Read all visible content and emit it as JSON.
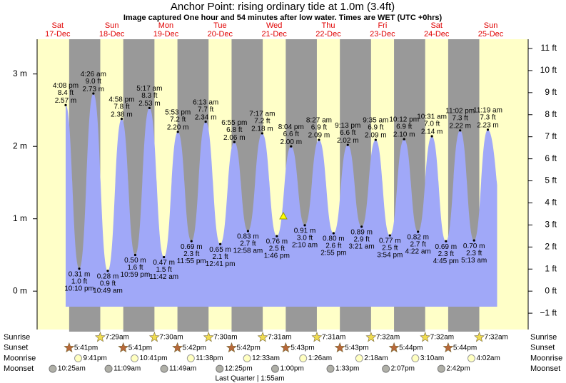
{
  "chart_data": {
    "type": "tide",
    "title": "Anchor Point: rising  ordinary tide at 1.0m (3.4ft)",
    "subtitle": "Image captured One hour and 54 minutes after low water. Times are WET (UTC +0hrs)",
    "days": [
      {
        "name": "Sat",
        "date": "17-Dec"
      },
      {
        "name": "Sun",
        "date": "18-Dec"
      },
      {
        "name": "Mon",
        "date": "19-Dec"
      },
      {
        "name": "Tue",
        "date": "20-Dec"
      },
      {
        "name": "Wed",
        "date": "21-Dec"
      },
      {
        "name": "Thu",
        "date": "22-Dec"
      },
      {
        "name": "Fri",
        "date": "23-Dec"
      },
      {
        "name": "Sat",
        "date": "24-Dec"
      },
      {
        "name": "Sun",
        "date": "25-Dec"
      }
    ],
    "times": [
      "4:08 pm",
      "10:10 pm",
      "4:26 am",
      "10:49 am",
      "4:58 pm",
      "10:59 pm",
      "5:17 am",
      "11:42 am",
      "5:53 pm",
      "11:55 pm",
      "6:13 am",
      "12:41 pm",
      "6:55 pm",
      "12:58 am",
      "7:17 am",
      "1:46 pm",
      "8:04 pm",
      "2:10 am",
      "8:27 am",
      "2:55 pm",
      "9:13 pm",
      "3:21 am",
      "9:35 am",
      "3:54 pm",
      "10:12 pm",
      "4:22 am",
      "10:31 am",
      "4:45 pm",
      "11:02 pm",
      "5:13 am",
      "11:19 am"
    ],
    "values": [
      2.57,
      0.31,
      2.73,
      0.28,
      2.38,
      0.5,
      2.53,
      0.47,
      2.2,
      0.69,
      2.34,
      0.65,
      2.06,
      0.83,
      2.18,
      0.76,
      2.0,
      0.91,
      2.09,
      0.8,
      2.02,
      0.89,
      2.09,
      0.77,
      2.1,
      0.82,
      2.14,
      0.69,
      2.22,
      0.7,
      2.23
    ],
    "value_labels": [
      "2.57 m",
      "0.31 m",
      "2.73 m",
      "0.28 m",
      "2.38 m",
      "0.50 m",
      "2.53 m",
      "0.47 m",
      "2.20 m",
      "0.69 m",
      "2.34 m",
      "0.65 m",
      "2.06 m",
      "0.83 m",
      "2.18 m",
      "0.76 m",
      "2.00 m",
      "0.91 m",
      "2.09 m",
      "0.80 m",
      "2.02 m",
      "0.89 m",
      "2.09 m",
      "0.77 m",
      "2.10 m",
      "0.82 m",
      "2.14 m",
      "0.69 m",
      "2.22 m",
      "0.70 m",
      "2.23 m"
    ],
    "ft_labels": [
      "8.4 ft",
      "1.0 ft",
      "9.0 ft",
      "0.9 ft",
      "7.8 ft",
      "1.6 ft",
      "8.3 ft",
      "1.5 ft",
      "7.2 ft",
      "2.3 ft",
      "7.7 ft",
      "2.1 ft",
      "6.8 ft",
      "2.7 ft",
      "7.2 ft",
      "2.5 ft",
      "6.6 ft",
      "3.0 ft",
      "6.9 ft",
      "2.6 ft",
      "6.6 ft",
      "2.9 ft",
      "6.9 ft",
      "2.5 ft",
      "6.9 ft",
      "2.7 ft",
      "7.0 ft",
      "2.3 ft",
      "7.3 ft",
      "2.3 ft",
      "7.3 ft"
    ],
    "ylim": [
      -0.53,
      3.48
    ],
    "yticks": [
      {
        "value": 0,
        "label": "0 m"
      },
      {
        "value": 1,
        "label": "1 m"
      },
      {
        "value": 2,
        "label": "2 m"
      },
      {
        "value": 3,
        "label": "3 m"
      }
    ],
    "y2lim": [
      -1.74,
      11.42
    ],
    "y2ticks": [
      {
        "value": -1,
        "label": "−1 ft"
      },
      {
        "value": 0,
        "label": "0 ft"
      },
      {
        "value": 1,
        "label": "1 ft"
      },
      {
        "value": 2,
        "label": "2 ft"
      },
      {
        "value": 3,
        "label": "3 ft"
      },
      {
        "value": 4,
        "label": "4 ft"
      },
      {
        "value": 5,
        "label": "5 ft"
      },
      {
        "value": 6,
        "label": "6 ft"
      },
      {
        "value": 7,
        "label": "7 ft"
      },
      {
        "value": 8,
        "label": "8 ft"
      },
      {
        "value": 9,
        "label": "9 ft"
      },
      {
        "value": 10,
        "label": "10 ft"
      },
      {
        "value": 11,
        "label": "11 ft"
      }
    ],
    "color": "#a0a8f8"
  },
  "almanac": {
    "rows": [
      {
        "name": "Sunrise",
        "times": [
          null,
          "7:29am",
          "7:30am",
          "7:30am",
          "7:31am",
          "7:31am",
          "7:32am",
          "7:32am",
          "7:32am"
        ]
      },
      {
        "name": "Sunset",
        "times": [
          "5:41pm",
          "5:41pm",
          "5:42pm",
          "5:42pm",
          "5:43pm",
          "5:43pm",
          "5:44pm",
          "5:44pm",
          null
        ]
      },
      {
        "name": "Moonrise",
        "times": [
          "9:41pm",
          "10:41pm",
          "11:38pm",
          null,
          "12:33am",
          "1:26am",
          "2:18am",
          "3:10am",
          "4:02am"
        ]
      },
      {
        "name": "Moonset",
        "times": [
          "10:25am",
          "11:09am",
          "11:49am",
          "12:25pm",
          "1:00pm",
          "1:33pm",
          "2:07pm",
          "2:42pm",
          null
        ]
      }
    ],
    "moon_phase": "Last Quarter | 1:55am"
  }
}
